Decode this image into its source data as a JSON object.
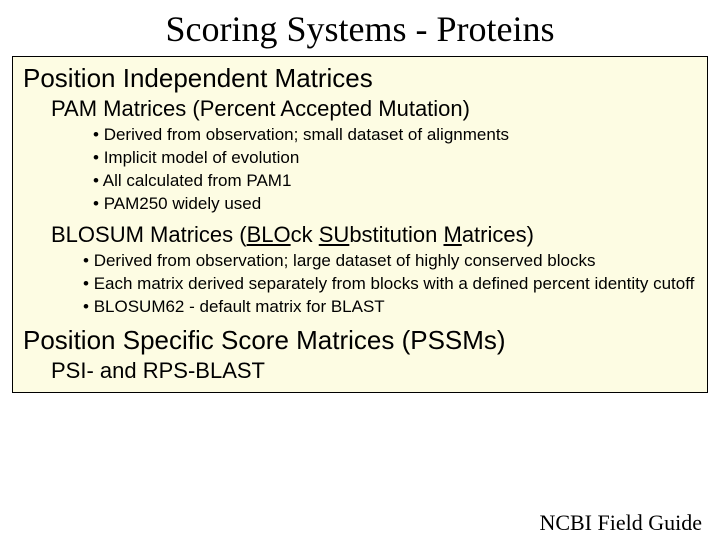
{
  "colors": {
    "background": "#ffffff",
    "box_background": "#fdfce3",
    "box_border": "#000000",
    "text": "#000000"
  },
  "typography": {
    "title_font": "Times New Roman",
    "body_font": "Lucida Sans",
    "title_size_pt": 36,
    "h1_size_pt": 26,
    "h2_size_pt": 22,
    "bullet_size_pt": 17,
    "footer_size_pt": 22
  },
  "title": "Scoring Systems - Proteins",
  "section1": {
    "heading": "Position Independent Matrices",
    "sub1": {
      "heading": "PAM Matrices (Percent Accepted Mutation)",
      "bullets": [
        "Derived from observation; small dataset of alignments",
        "Implicit model of evolution",
        "All calculated from PAM1",
        "PAM250 widely used"
      ]
    },
    "sub2": {
      "heading_parts": {
        "pre": "BLOSUM Matrices (",
        "u1": "BLO",
        "mid1": "ck ",
        "u2": "SU",
        "mid2": "bstitution ",
        "u3": "M",
        "post": "atrices)"
      },
      "bullets": [
        "Derived from observation; large dataset of highly conserved blocks",
        "Each matrix derived separately from blocks with a defined percent identity cutoff",
        "BLOSUM62 - default matrix for BLAST"
      ]
    }
  },
  "section2": {
    "heading": "Position Specific Score Matrices (PSSMs)",
    "sub": "PSI- and RPS-BLAST"
  },
  "footer": "NCBI Field Guide"
}
